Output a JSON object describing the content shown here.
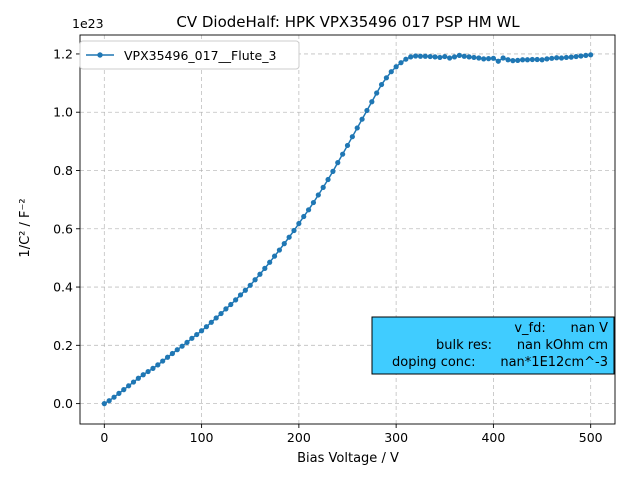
{
  "chart_data": {
    "type": "line",
    "title": "CV DiodeHalf: HPK VPX35496 017 PSP HM WL",
    "xlabel": "Bias Voltage / V",
    "ylabel": "1/C² / F⁻²",
    "y_offset_label": "1e23",
    "y_scale": 1e+23,
    "xlim": [
      -25,
      525
    ],
    "ylim": [
      -0.07,
      1.265
    ],
    "x_ticks": [
      0,
      100,
      200,
      300,
      400,
      500
    ],
    "x_tick_labels": [
      "0",
      "100",
      "200",
      "300",
      "400",
      "500"
    ],
    "y_ticks": [
      0.0,
      0.2,
      0.4,
      0.6,
      0.8,
      1.0,
      1.2
    ],
    "y_tick_labels": [
      "0.0",
      "0.2",
      "0.4",
      "0.6",
      "0.8",
      "1.0",
      "1.2"
    ],
    "grid": true,
    "legend_position": "top-left",
    "series": [
      {
        "name": "VPX35496_017__Flute_3",
        "color": "#1f77b4",
        "x": [
          0,
          5,
          10,
          15,
          20,
          25,
          30,
          35,
          40,
          45,
          50,
          55,
          60,
          65,
          70,
          75,
          80,
          85,
          90,
          95,
          100,
          105,
          110,
          115,
          120,
          125,
          130,
          135,
          140,
          145,
          150,
          155,
          160,
          165,
          170,
          175,
          180,
          185,
          190,
          195,
          200,
          205,
          210,
          215,
          220,
          225,
          230,
          235,
          240,
          245,
          250,
          255,
          260,
          265,
          270,
          275,
          280,
          285,
          290,
          295,
          300,
          305,
          310,
          315,
          320,
          325,
          330,
          335,
          340,
          345,
          350,
          355,
          360,
          365,
          370,
          375,
          380,
          385,
          390,
          395,
          400,
          405,
          410,
          415,
          420,
          425,
          430,
          435,
          440,
          445,
          450,
          455,
          460,
          465,
          470,
          475,
          480,
          485,
          490,
          495,
          500
        ],
        "y": [
          0.0,
          0.01,
          0.022,
          0.035,
          0.048,
          0.061,
          0.074,
          0.087,
          0.099,
          0.11,
          0.121,
          0.133,
          0.146,
          0.159,
          0.172,
          0.185,
          0.197,
          0.21,
          0.224,
          0.237,
          0.25,
          0.264,
          0.279,
          0.294,
          0.309,
          0.325,
          0.34,
          0.356,
          0.373,
          0.389,
          0.406,
          0.425,
          0.444,
          0.464,
          0.485,
          0.506,
          0.527,
          0.549,
          0.571,
          0.594,
          0.618,
          0.642,
          0.665,
          0.69,
          0.716,
          0.742,
          0.769,
          0.797,
          0.827,
          0.856,
          0.886,
          0.916,
          0.946,
          0.976,
          1.006,
          1.036,
          1.066,
          1.095,
          1.118,
          1.139,
          1.156,
          1.17,
          1.182,
          1.19,
          1.193,
          1.192,
          1.192,
          1.191,
          1.19,
          1.188,
          1.191,
          1.186,
          1.19,
          1.195,
          1.192,
          1.19,
          1.188,
          1.186,
          1.183,
          1.184,
          1.185,
          1.175,
          1.186,
          1.18,
          1.177,
          1.178,
          1.18,
          1.18,
          1.181,
          1.181,
          1.18,
          1.183,
          1.185,
          1.187,
          1.186,
          1.188,
          1.189,
          1.191,
          1.193,
          1.195,
          1.197
        ]
      }
    ],
    "annotation": {
      "lines": [
        "v_fd:      nan V",
        "bulk res:      nan kOhm cm",
        "doping conc:      nan*1E12cm^-3"
      ],
      "background_color": "#40ccff"
    }
  }
}
